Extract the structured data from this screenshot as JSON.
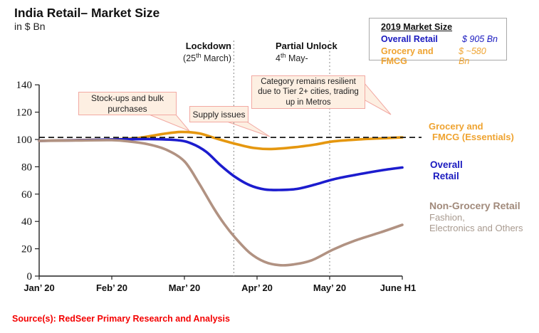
{
  "title": "India Retail– Market Size",
  "subtitle": "in $ Bn",
  "source": "Source(s): RedSeer Primary Research and Analysis",
  "legend_box": {
    "heading": "2019 Market Size",
    "rows": [
      {
        "label": "Overall Retail",
        "value": "$ 905 Bn",
        "color": "#1a1abf"
      },
      {
        "label": "Grocery and FMCG",
        "value": "$ ~580 Bn",
        "color": "#efa330"
      }
    ]
  },
  "events": [
    {
      "title": "Lockdown",
      "date_pre": "(25",
      "date_sup": "th",
      "date_post": " March)"
    },
    {
      "title": "Partial Unlock",
      "date_pre": "4",
      "date_sup": "th",
      "date_post": "  May-"
    }
  ],
  "callouts": [
    {
      "text": "Stock-ups and bulk purchases"
    },
    {
      "text": "Supply issues"
    },
    {
      "text": "Category remains resilient due to Tier 2+ cities, trading up in Metros"
    }
  ],
  "series_labels": {
    "grocery": {
      "line1": "Grocery and",
      "line2": "FMCG (Essentials)"
    },
    "overall": {
      "line1": "Overall",
      "line2": "Retail"
    },
    "non_grocery": {
      "title": "Non-Grocery Retail",
      "sub1": "Fashion,",
      "sub2": "Electronics and Others"
    }
  },
  "chart_data": {
    "type": "line",
    "title": "India Retail– Market Size (indexed, in $ Bn)",
    "x_categories": [
      "Jan’ 20",
      "Feb’ 20",
      "Mar’ 20",
      "Apr’ 20",
      "May’ 20",
      "June H1"
    ],
    "y_ticks": [
      0,
      20,
      40,
      60,
      80,
      100,
      120,
      140
    ],
    "ylim": [
      0,
      140
    ],
    "grid": false,
    "baseline_value": 101.5,
    "baseline_style": "dashed",
    "event_lines_x": [
      2.68,
      4.0
    ],
    "series": [
      {
        "name": "Grocery and FMCG (Essentials)",
        "color": "#e5970f",
        "points": [
          [
            0,
            99
          ],
          [
            0.5,
            99.5
          ],
          [
            1,
            100
          ],
          [
            1.35,
            101
          ],
          [
            1.7,
            104
          ],
          [
            1.95,
            105.5
          ],
          [
            2.2,
            104.5
          ],
          [
            2.45,
            100.5
          ],
          [
            2.7,
            96.8
          ],
          [
            2.95,
            93.8
          ],
          [
            3.2,
            93
          ],
          [
            3.5,
            94.2
          ],
          [
            3.8,
            96.3
          ],
          [
            4.05,
            98.6
          ],
          [
            4.4,
            100
          ],
          [
            4.7,
            100.8
          ],
          [
            5,
            101.5
          ]
        ]
      },
      {
        "name": "Overall Retail",
        "color": "#1c1cce",
        "points": [
          [
            0,
            99
          ],
          [
            0.5,
            99.4
          ],
          [
            1,
            100
          ],
          [
            1.5,
            100.3
          ],
          [
            1.9,
            99.5
          ],
          [
            2.1,
            97
          ],
          [
            2.3,
            91
          ],
          [
            2.5,
            81
          ],
          [
            2.7,
            72.5
          ],
          [
            2.9,
            66.5
          ],
          [
            3.1,
            63.5
          ],
          [
            3.3,
            63
          ],
          [
            3.55,
            63.8
          ],
          [
            3.8,
            67
          ],
          [
            4.05,
            70.8
          ],
          [
            4.35,
            74
          ],
          [
            4.7,
            77.3
          ],
          [
            5,
            79.5
          ]
        ]
      },
      {
        "name": "Non-Grocery Retail (Fashion, Electronics and Others)",
        "color": "#b19282",
        "points": [
          [
            0,
            99
          ],
          [
            0.5,
            99.2
          ],
          [
            1,
            99.5
          ],
          [
            1.25,
            98.5
          ],
          [
            1.5,
            96.5
          ],
          [
            1.75,
            92.5
          ],
          [
            2,
            84
          ],
          [
            2.2,
            68
          ],
          [
            2.4,
            50
          ],
          [
            2.55,
            38
          ],
          [
            2.7,
            28
          ],
          [
            2.9,
            17
          ],
          [
            3.1,
            10.5
          ],
          [
            3.3,
            8
          ],
          [
            3.5,
            8.5
          ],
          [
            3.75,
            11.5
          ],
          [
            4.05,
            19.5
          ],
          [
            4.35,
            26
          ],
          [
            4.7,
            32
          ],
          [
            5,
            37.5
          ]
        ]
      }
    ]
  }
}
